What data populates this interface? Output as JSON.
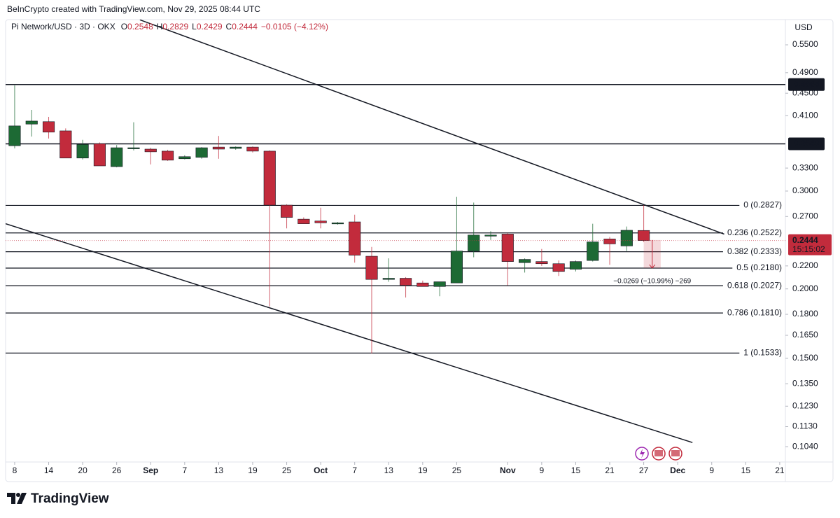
{
  "header": {
    "attribution": "BeInCrypto created with TradingView.com, Nov 29, 2025 08:44 UTC"
  },
  "chart_data": {
    "type": "candlestick",
    "title": "Pi Network/USD · 3D · OKX",
    "ohlc_labels": [
      "O",
      "H",
      "L",
      "C"
    ],
    "change_label": "−0.0105 (−4.12%)",
    "currency": "USD",
    "countdown": "15:15:02",
    "x": [
      0,
      3,
      6,
      9,
      12,
      15,
      18,
      21,
      24,
      27,
      30,
      33,
      36,
      39,
      42,
      45,
      48,
      51,
      54,
      57,
      60,
      63,
      66,
      69,
      72,
      75,
      78,
      81,
      84,
      87,
      90,
      93,
      96,
      99,
      102,
      105,
      108,
      111
    ],
    "open": [
      0.362,
      0.396,
      0.4,
      0.385,
      0.344,
      0.365,
      0.332,
      0.358,
      0.357,
      0.354,
      0.343,
      0.345,
      0.36,
      0.358,
      0.36,
      0.354,
      0.283,
      0.267,
      0.265,
      0.262,
      0.264,
      0.229,
      0.208,
      0.209,
      0.205,
      0.202,
      0.205,
      0.234,
      0.25,
      0.251,
      0.223,
      0.224,
      0.222,
      0.217,
      0.225,
      0.246,
      0.239,
      0.2548
    ],
    "high": [
      0.465,
      0.42,
      0.408,
      0.389,
      0.371,
      0.367,
      0.363,
      0.399,
      0.359,
      0.356,
      0.348,
      0.36,
      0.377,
      0.361,
      0.361,
      0.355,
      0.284,
      0.269,
      0.28,
      0.264,
      0.272,
      0.238,
      0.227,
      0.21,
      0.207,
      0.206,
      0.293,
      0.286,
      0.254,
      0.252,
      0.227,
      0.236,
      0.225,
      0.225,
      0.262,
      0.248,
      0.259,
      0.2829
    ],
    "low": [
      0.358,
      0.376,
      0.373,
      0.344,
      0.342,
      0.333,
      0.331,
      0.355,
      0.335,
      0.34,
      0.342,
      0.343,
      0.343,
      0.356,
      0.352,
      0.186,
      0.257,
      0.262,
      0.257,
      0.261,
      0.223,
      0.153,
      0.206,
      0.193,
      0.202,
      0.194,
      0.205,
      0.228,
      0.245,
      0.203,
      0.214,
      0.22,
      0.211,
      0.215,
      0.224,
      0.221,
      0.234,
      0.2429
    ],
    "close": [
      0.393,
      0.401,
      0.383,
      0.344,
      0.364,
      0.333,
      0.359,
      0.359,
      0.353,
      0.341,
      0.346,
      0.359,
      0.357,
      0.36,
      0.354,
      0.283,
      0.269,
      0.262,
      0.263,
      0.263,
      0.23,
      0.208,
      0.209,
      0.203,
      0.202,
      0.206,
      0.234,
      0.25,
      0.25,
      0.224,
      0.226,
      0.222,
      0.215,
      0.224,
      0.243,
      0.241,
      0.255,
      0.2444
    ],
    "up_color": "#1d6a34",
    "down_color": "#c22b3c",
    "xlim": [
      -1.6,
      136
    ],
    "xticks": [
      {
        "value": 0,
        "label": "8"
      },
      {
        "value": 6,
        "label": "14"
      },
      {
        "value": 12,
        "label": "20"
      },
      {
        "value": 18,
        "label": "26"
      },
      {
        "value": 24,
        "label": "Sep"
      },
      {
        "value": 30,
        "label": "7"
      },
      {
        "value": 36,
        "label": "13"
      },
      {
        "value": 42,
        "label": "19"
      },
      {
        "value": 48,
        "label": "25"
      },
      {
        "value": 54,
        "label": "Oct"
      },
      {
        "value": 60,
        "label": "7"
      },
      {
        "value": 66,
        "label": "13"
      },
      {
        "value": 72,
        "label": "19"
      },
      {
        "value": 78,
        "label": "25"
      },
      {
        "value": 87,
        "label": "Nov"
      },
      {
        "value": 93,
        "label": "9"
      },
      {
        "value": 99,
        "label": "15"
      },
      {
        "value": 105,
        "label": "21"
      },
      {
        "value": 111,
        "label": "27"
      },
      {
        "value": 117,
        "label": "Dec"
      },
      {
        "value": 123,
        "label": "9"
      },
      {
        "value": 129,
        "label": "15"
      },
      {
        "value": 135,
        "label": "21"
      }
    ],
    "ylim": [
      0.0976,
      0.6106
    ],
    "log_y": true,
    "yticks": [
      {
        "value": 0.55,
        "label": "0.5500"
      },
      {
        "value": 0.49,
        "label": "0.4900"
      },
      {
        "value": 0.45,
        "label": "0.4500"
      },
      {
        "value": 0.41,
        "label": "0.4100"
      },
      {
        "value": 0.33,
        "label": "0.3300"
      },
      {
        "value": 0.3,
        "label": "0.3000"
      },
      {
        "value": 0.27,
        "label": "0.2700"
      },
      {
        "value": 0.22,
        "label": "0.2200"
      },
      {
        "value": 0.2,
        "label": "0.2000"
      },
      {
        "value": 0.18,
        "label": "0.1800"
      },
      {
        "value": 0.165,
        "label": "0.1650"
      },
      {
        "value": 0.15,
        "label": "0.1500"
      },
      {
        "value": 0.135,
        "label": "0.1350"
      },
      {
        "value": 0.123,
        "label": "0.1230"
      },
      {
        "value": 0.113,
        "label": "0.1130"
      },
      {
        "value": 0.104,
        "label": "0.1040"
      }
    ],
    "hlines": [
      0.4666,
      0.3649
    ],
    "fib_levels": {
      "values": [
        0.2827,
        0.2522,
        0.2333,
        0.218,
        0.2027,
        0.181,
        0.1533
      ],
      "value_labels": [
        "0 (0.2827)",
        "0.236 (0.2522)",
        "0.382 (0.2333)",
        "0.5 (0.2180)",
        "0.618 (0.2027)",
        "0.786 (0.1810)",
        "1 (0.1533)"
      ]
    },
    "trendlines": [
      {
        "x": [
          22.1,
          125.2
        ],
        "y": [
          0.61,
          0.251
        ]
      },
      {
        "x": [
          -1.6,
          119.6
        ],
        "y": [
          0.262,
          0.1058
        ]
      }
    ],
    "measure": {
      "x": [
        111,
        114
      ],
      "y": [
        0.2449,
        0.218
      ],
      "label": "−0.0269 (−10.99%) −269"
    }
  },
  "footer": {
    "brand": "TradingView"
  }
}
